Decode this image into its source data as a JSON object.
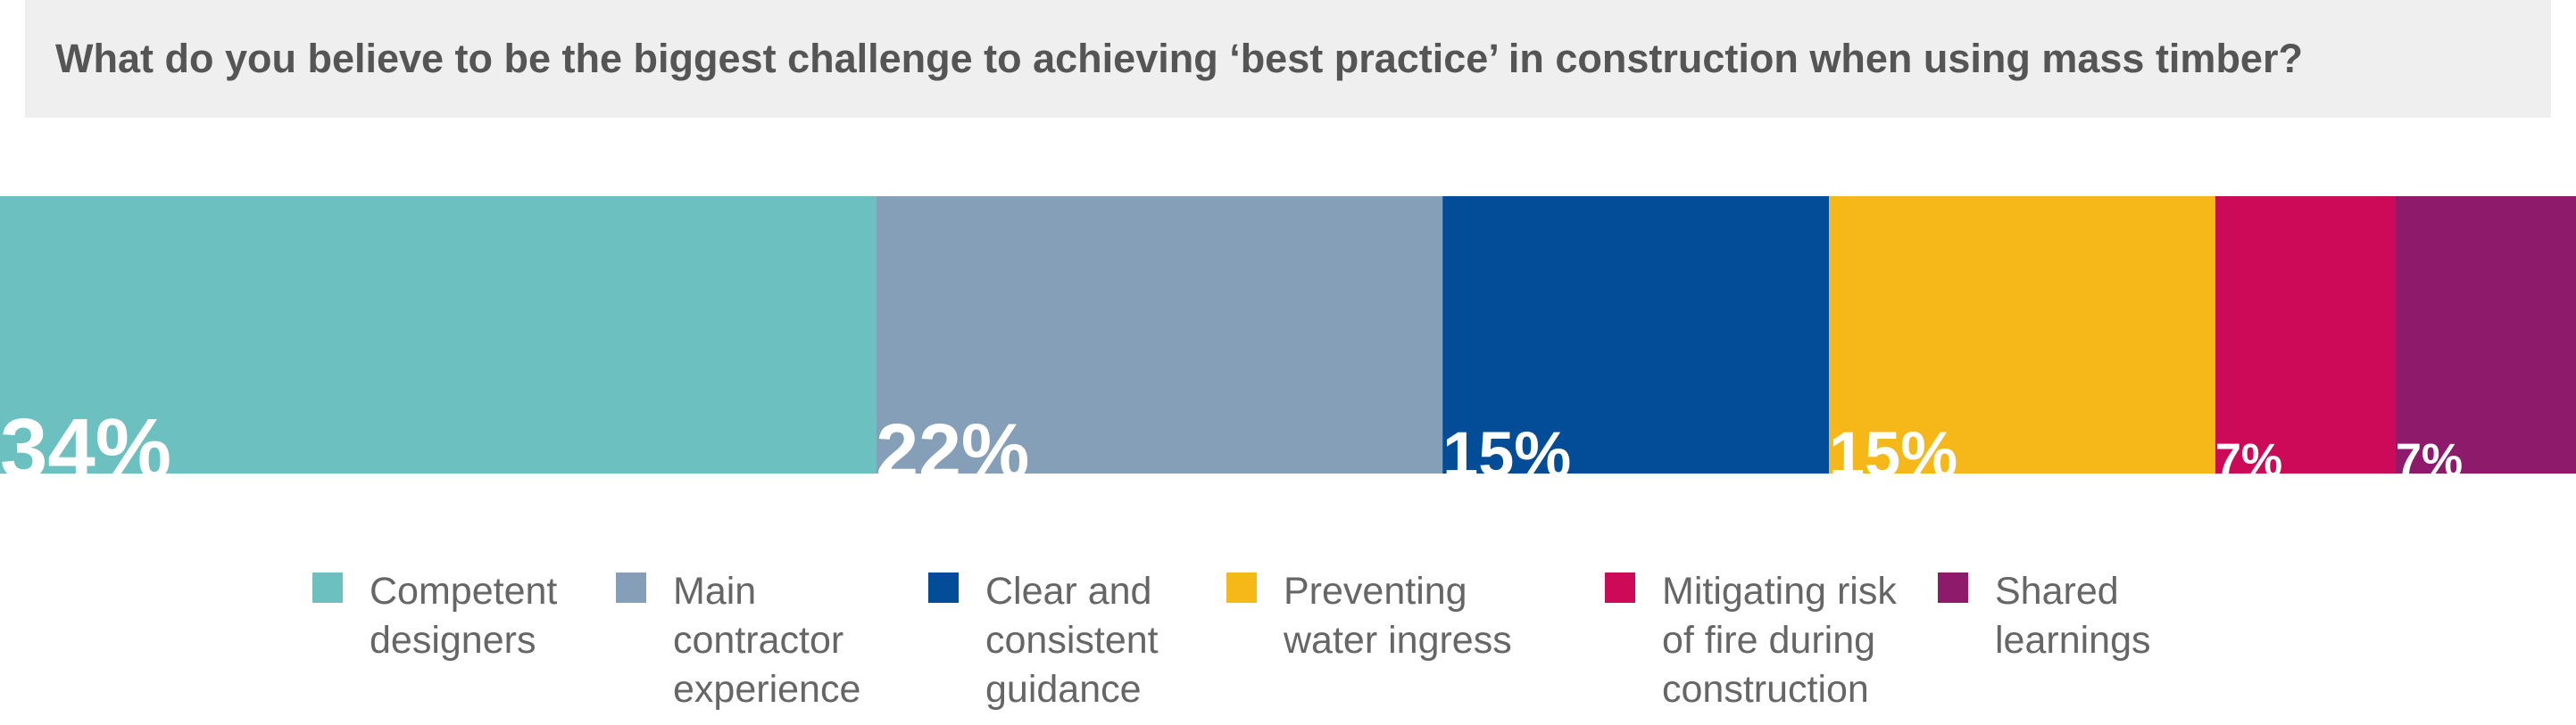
{
  "chart_data": {
    "type": "stacked-bar-100",
    "title": "What do you believe to be the biggest challenge to achieving ‘best practice’ in construction when using mass timber?",
    "series": [
      {
        "name": "Competent designers",
        "color": "#6cc1c0",
        "values": [
          34
        ],
        "value_labels": [
          "34%"
        ]
      },
      {
        "name": "Main contractor experience",
        "color": "#849fb7",
        "values": [
          22
        ],
        "value_labels": [
          "22%"
        ]
      },
      {
        "name": "Clear and consistent guidance",
        "color": "#034c97",
        "values": [
          15
        ],
        "value_labels": [
          "15%"
        ]
      },
      {
        "name": "Preventing water ingress",
        "color": "#f6b818",
        "values": [
          15
        ],
        "value_labels": [
          "15%"
        ]
      },
      {
        "name": "Mitigating risk of fire during construction",
        "color": "#cd0a58",
        "values": [
          7
        ],
        "value_labels": [
          "7%"
        ]
      },
      {
        "name": "Shared learnings",
        "color": "#8e1a6c",
        "values": [
          7
        ],
        "value_labels": [
          "7%"
        ]
      }
    ],
    "xlim": [
      0,
      100
    ]
  }
}
